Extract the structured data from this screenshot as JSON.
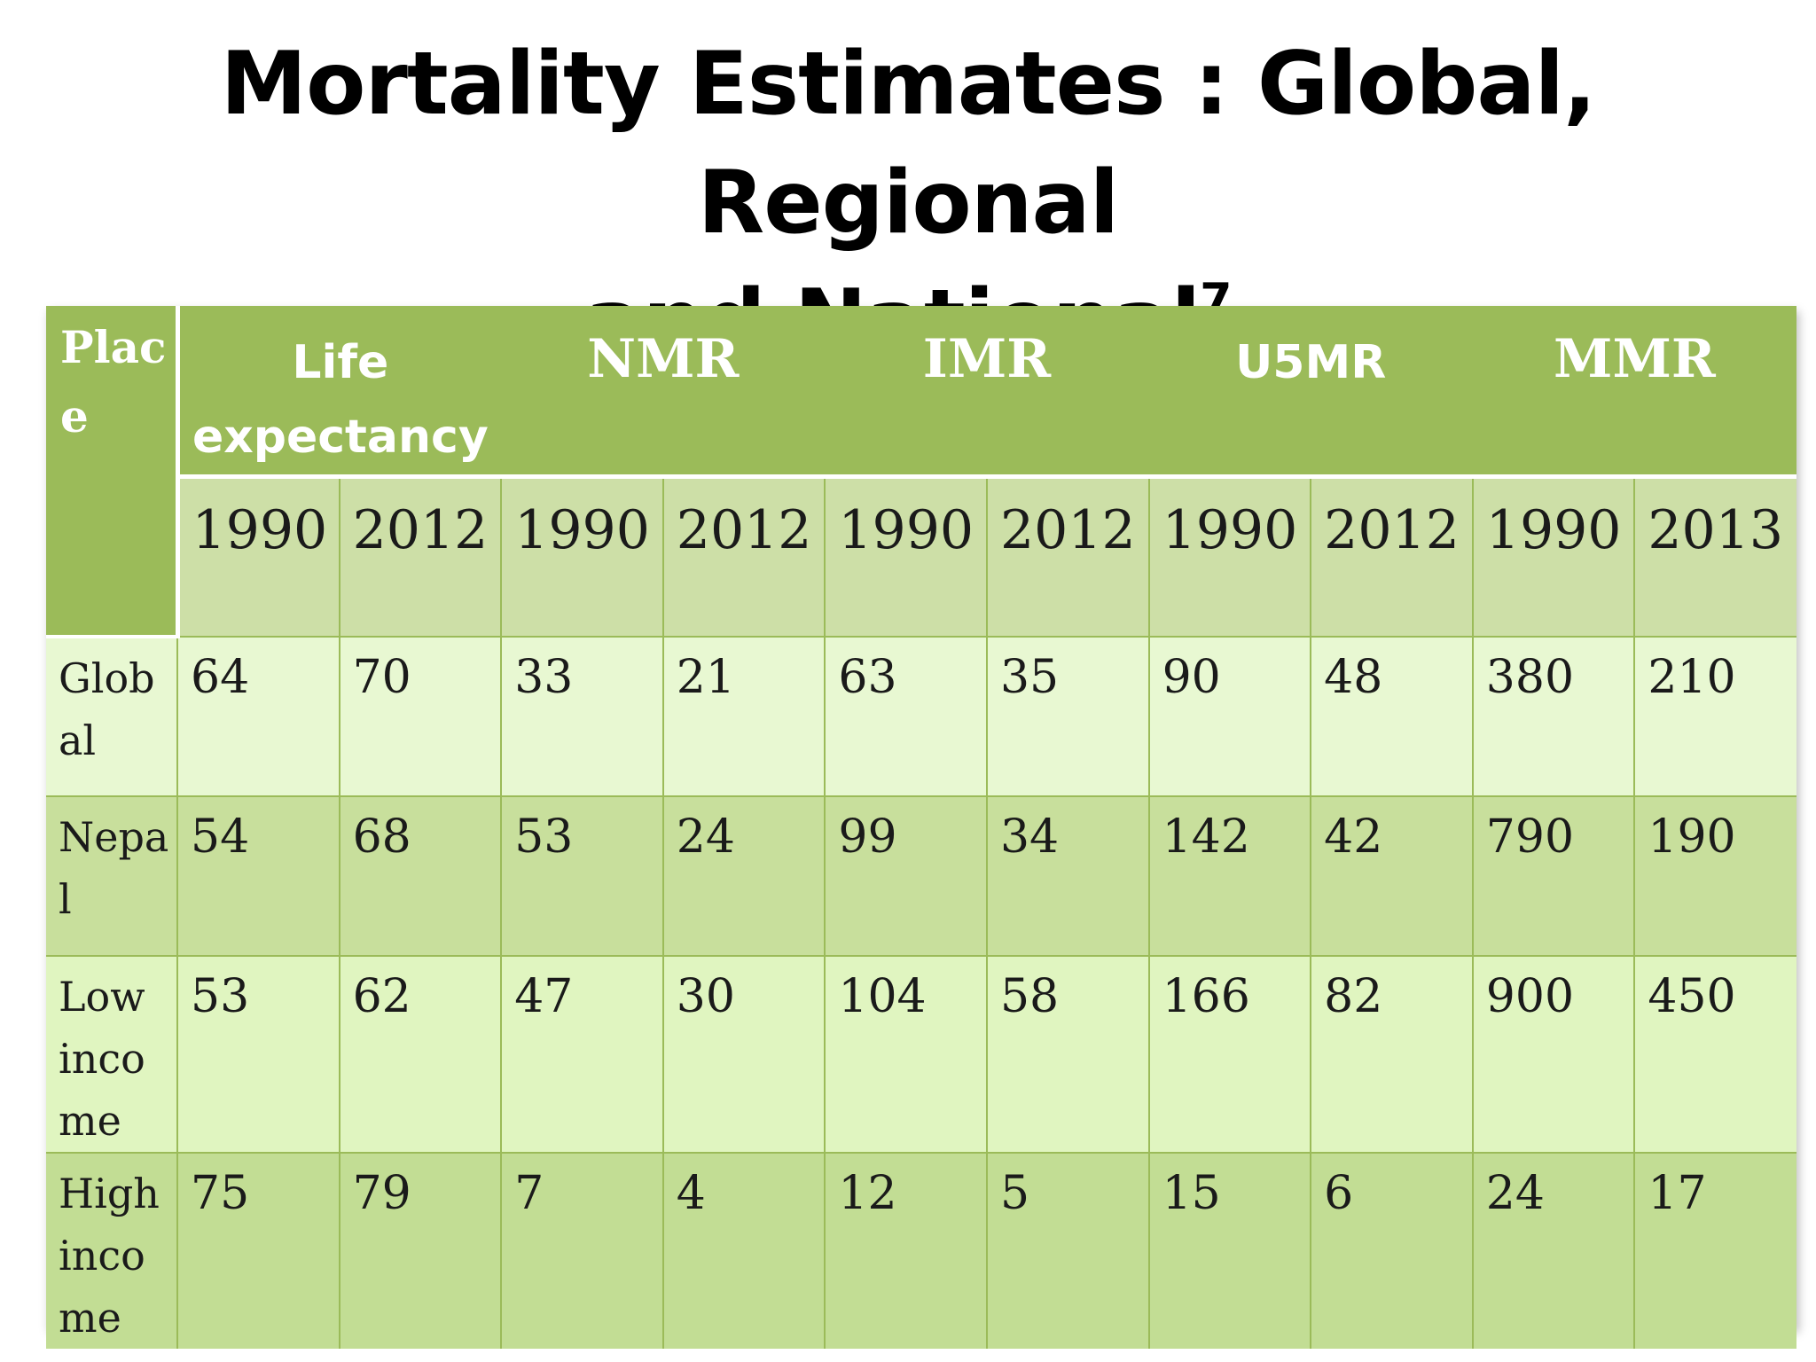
{
  "title": {
    "line1": "Mortality Estimates : Global, Regional",
    "line2": "and National",
    "superscript": "7"
  },
  "table": {
    "place_header_lines": [
      "Plac",
      "e"
    ],
    "groups": [
      {
        "label_lines": [
          "Life",
          "expectancy"
        ]
      },
      {
        "label_lines": [
          "NMR"
        ]
      },
      {
        "label_lines": [
          "IMR"
        ]
      },
      {
        "label_lines": [
          "U5MR"
        ]
      },
      {
        "label_lines": [
          "MMR"
        ]
      }
    ],
    "years": [
      "1990",
      "2012",
      "1990",
      "2012",
      "1990",
      "2012",
      "1990",
      "2012",
      "1990",
      "2013"
    ],
    "rows": [
      {
        "place_lines": [
          "Glob",
          "al"
        ],
        "values": [
          "64",
          "70",
          "33",
          "21",
          "63",
          "35",
          "90",
          "48",
          "380",
          "210"
        ]
      },
      {
        "place_lines": [
          "Nepa",
          "l"
        ],
        "values": [
          "54",
          "68",
          "53",
          "24",
          "99",
          "34",
          "142",
          "42",
          "790",
          "190"
        ]
      },
      {
        "place_lines": [
          "Low",
          "inco",
          "me"
        ],
        "values": [
          "53",
          "62",
          "47",
          "30",
          "104",
          "58",
          "166",
          "82",
          "900",
          "450"
        ]
      },
      {
        "place_lines": [
          "High",
          "inco",
          "me"
        ],
        "values": [
          "75",
          "79",
          "7",
          "4",
          "12",
          "5",
          "15",
          "6",
          "24",
          "17"
        ]
      }
    ]
  },
  "colors": {
    "header_green": "#9bbb59",
    "year_row": "#cddfa7",
    "row_light": "#e8f8d2",
    "row_dark": "#c8df9c"
  }
}
